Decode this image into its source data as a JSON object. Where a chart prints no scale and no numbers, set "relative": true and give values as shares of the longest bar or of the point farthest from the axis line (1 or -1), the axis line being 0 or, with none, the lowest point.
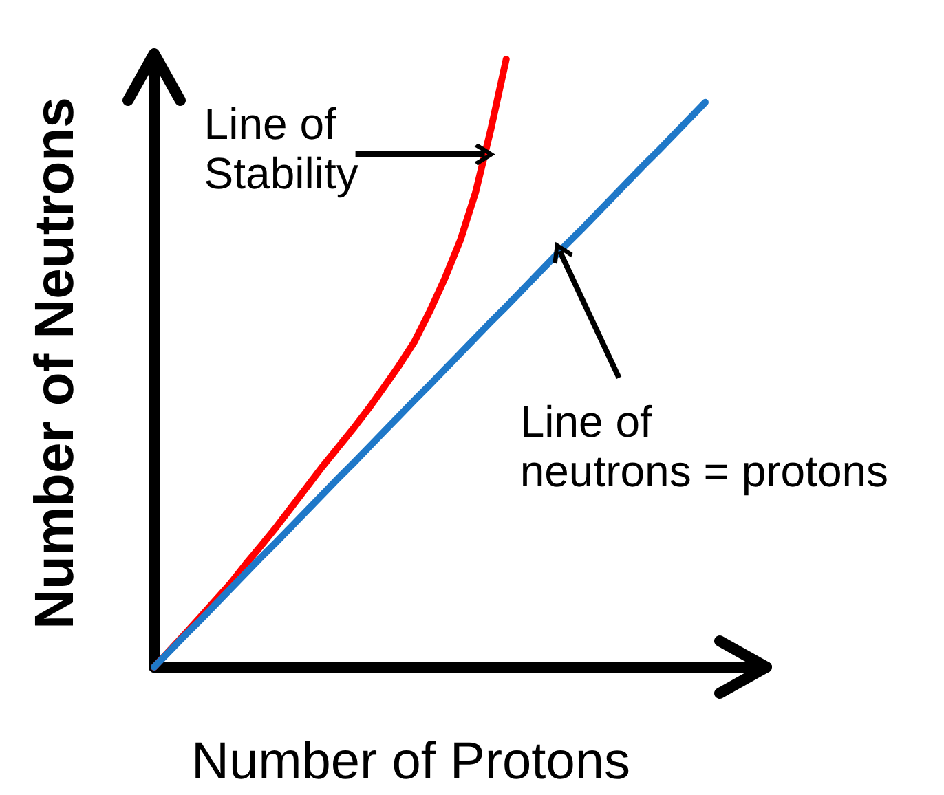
{
  "chart_data": {
    "type": "line",
    "xlabel": "Number of Protons",
    "ylabel": "Number of Neutrons",
    "relative": true,
    "marker": "none",
    "line_style": "solid",
    "categories": [
      null,
      null,
      null,
      null,
      null,
      null,
      null,
      null,
      null,
      null,
      null,
      null,
      null,
      null,
      null,
      null,
      null,
      null,
      null,
      null,
      null,
      null,
      null,
      null,
      null,
      null,
      null,
      null,
      null,
      null,
      null,
      null,
      null,
      null,
      null,
      null,
      null,
      null,
      null,
      null,
      null
    ],
    "series": [
      {
        "color": "#ff0000",
        "values": [
          0,
          0.027,
          0.054,
          0.082,
          0.11,
          0.138,
          0.17,
          0.2,
          0.231,
          0.264,
          0.297,
          0.33,
          0.361,
          0.392,
          0.425,
          0.46,
          0.496,
          0.535,
          0.585,
          0.64,
          0.702,
          0.781,
          0.885,
          1,
          null,
          null,
          null,
          null,
          null,
          null,
          null,
          null,
          null,
          null,
          null,
          null,
          null,
          null,
          null,
          null,
          null
        ]
      },
      {
        "color": "#1f78c8",
        "values": [
          0,
          0.026,
          0.052,
          0.077,
          0.103,
          0.129,
          0.155,
          0.181,
          0.206,
          0.232,
          0.258,
          0.284,
          0.31,
          0.335,
          0.361,
          0.387,
          0.413,
          0.439,
          0.464,
          0.49,
          0.516,
          0.542,
          0.568,
          0.593,
          0.619,
          0.645,
          0.671,
          0.697,
          0.722,
          0.748,
          0.774,
          0.8,
          0.826,
          0.851,
          0.877,
          0.903,
          0.929,
          null,
          null,
          null,
          null
        ]
      }
    ],
    "annotations": [
      "Line of\nStability",
      "Line of\nneutrons = protons"
    ]
  }
}
